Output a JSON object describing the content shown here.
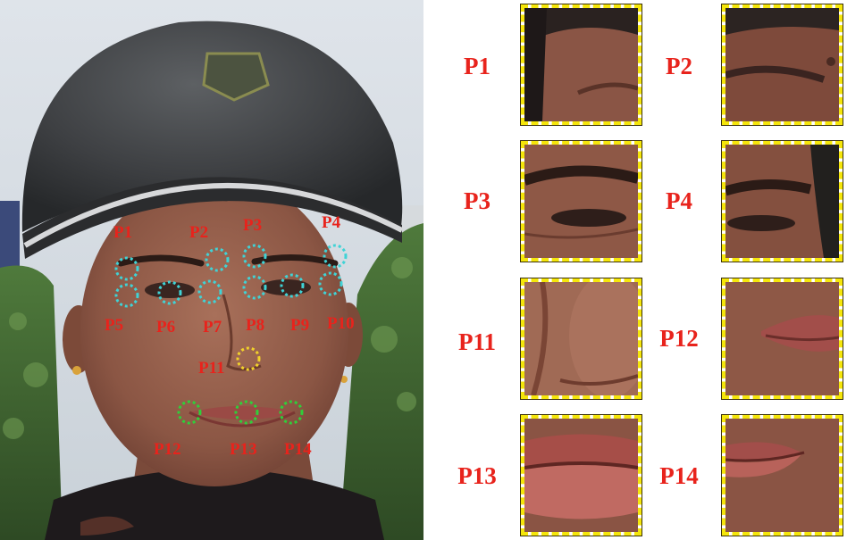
{
  "face_labels": {
    "p1": "P1",
    "p2": "P2",
    "p3": "P3",
    "p4": "P4",
    "p5": "P5",
    "p6": "P6",
    "p7": "P7",
    "p8": "P8",
    "p9": "P9",
    "p10": "P10",
    "p11": "P11",
    "p12": "P12",
    "p13": "P13",
    "p14": "P14"
  },
  "patch_labels": {
    "p1": "P1",
    "p2": "P2",
    "p3": "P3",
    "p4": "P4",
    "p11": "P11",
    "p12": "P12",
    "p13": "P13",
    "p14": "P14"
  },
  "colors": {
    "label": "#e8231c",
    "patch_border": "#f5e60a",
    "eye_markers": "#3fd3d6",
    "nose_marker": "#f2d22a",
    "mouth_markers": "#2fcf3a"
  }
}
